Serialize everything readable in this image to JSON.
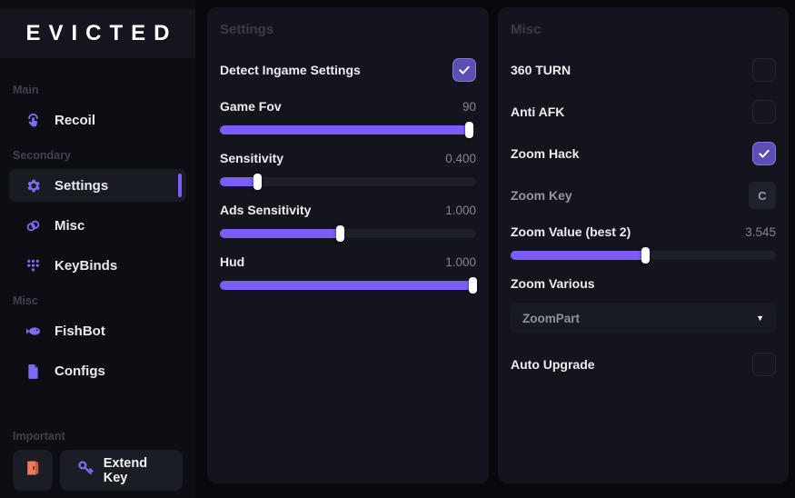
{
  "colors": {
    "accent": "#7c5dfa",
    "checkbox_checked": "#5b4fb4",
    "door_orange": "#ec7a5c",
    "panel_bg": "#14151c",
    "page_bg": "#08090d"
  },
  "sidebar": {
    "logo": "EVICTED",
    "sections": [
      {
        "label": "Main",
        "items": [
          {
            "label": "Recoil",
            "icon": "recoil-icon",
            "active": false
          }
        ]
      },
      {
        "label": "Secondary",
        "items": [
          {
            "label": "Settings",
            "icon": "gear-icon",
            "active": true
          },
          {
            "label": "Misc",
            "icon": "rings-icon",
            "active": false
          },
          {
            "label": "KeyBinds",
            "icon": "keypad-icon",
            "active": false
          }
        ]
      },
      {
        "label": "Misc",
        "items": [
          {
            "label": "FishBot",
            "icon": "fish-icon",
            "active": false
          },
          {
            "label": "Configs",
            "icon": "file-icon",
            "active": false
          }
        ]
      }
    ],
    "footer": {
      "label": "Important",
      "exit_icon": "door-icon",
      "extend_key_icon": "key-icon",
      "extend_key_label": "Extend Key"
    }
  },
  "settings_panel": {
    "title": "Settings",
    "detect_toggle": {
      "label": "Detect Ingame Settings",
      "checked": true
    },
    "sliders": [
      {
        "label": "Game Fov",
        "value": "90",
        "percent": 97.5
      },
      {
        "label": "Sensitivity",
        "value": "0.400",
        "percent": 15
      },
      {
        "label": "Ads Sensitivity",
        "value": "1.000",
        "percent": 47
      },
      {
        "label": "Hud",
        "value": "1.000",
        "percent": 99
      }
    ]
  },
  "misc_panel": {
    "title": "Misc",
    "toggles": [
      {
        "label": "360 TURN",
        "checked": false
      },
      {
        "label": "Anti AFK",
        "checked": false
      },
      {
        "label": "Zoom Hack",
        "checked": true
      }
    ],
    "zoom_key": {
      "label": "Zoom Key",
      "key": "C"
    },
    "zoom_value": {
      "label": "Zoom Value (best 2)",
      "value": "3.545",
      "percent": 51
    },
    "zoom_various": {
      "label": "Zoom Various",
      "selected": "ZoomPart",
      "caret": "▼"
    },
    "auto_upgrade": {
      "label": "Auto Upgrade",
      "checked": false
    }
  }
}
